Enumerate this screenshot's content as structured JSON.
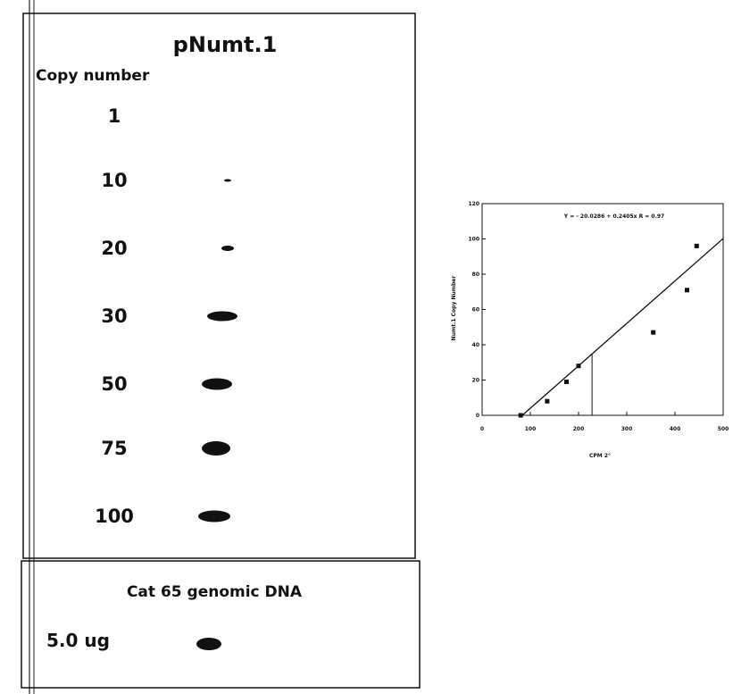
{
  "blot": {
    "title": "pNumt.1",
    "axis_label": "Copy number",
    "copy_numbers": [
      "1",
      "10",
      "20",
      "30",
      "50",
      "75",
      "100"
    ]
  },
  "genomic": {
    "title": "Cat 65 genomic DNA",
    "amount": "5.0 ug"
  },
  "chart_data": {
    "type": "scatter",
    "annotation": "Y = - 20.0286 + 0.2405x   R = 0.97",
    "x_label": "CPM 2°",
    "y_label": "Numt.1 Copy Number",
    "x": [
      80,
      135,
      175,
      200,
      355,
      425,
      445
    ],
    "values": [
      0,
      8,
      19,
      28,
      47,
      71,
      96
    ],
    "trendline": {
      "intercept": -20.0286,
      "slope": 0.2405
    },
    "reference_x": [
      228
    ],
    "xlim": [
      0,
      500
    ],
    "ylim": [
      0,
      120
    ],
    "xticks": [
      0,
      100,
      200,
      300,
      400,
      500
    ],
    "yticks": [
      0,
      20,
      40,
      60,
      80,
      100,
      120
    ],
    "color": "#111111"
  }
}
